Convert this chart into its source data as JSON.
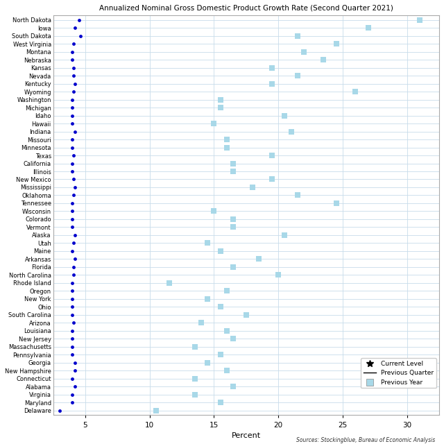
{
  "title": "Annualized Nominal Gross Domestic Product Growth Rate (Second Quarter 2021)",
  "xlabel": "Percent",
  "source": "Sources: Stockingblue, Bureau of Economic Analysis",
  "states": [
    "North Dakota",
    "Iowa",
    "South Dakota",
    "West Virginia",
    "Montana",
    "Nebraska",
    "Kansas",
    "Nevada",
    "Kentucky",
    "Wyoming",
    "Washington",
    "Michigan",
    "Idaho",
    "Hawaii",
    "Indiana",
    "Missouri",
    "Minnesota",
    "Texas",
    "California",
    "Illinois",
    "New Mexico",
    "Mississippi",
    "Oklahoma",
    "Tennessee",
    "Wisconsin",
    "Colorado",
    "Vermont",
    "Alaska",
    "Utah",
    "Maine",
    "Arkansas",
    "Florida",
    "North Carolina",
    "Rhode Island",
    "Oregon",
    "New York",
    "Ohio",
    "South Carolina",
    "Arizona",
    "Louisiana",
    "New Jersey",
    "Massachusetts",
    "Pennsylvania",
    "Georgia",
    "New Hampshire",
    "Connecticut",
    "Alabama",
    "Virginia",
    "Maryland",
    "Delaware"
  ],
  "current_level": [
    4.5,
    4.2,
    4.6,
    4.1,
    4.0,
    4.0,
    4.1,
    4.1,
    4.2,
    4.1,
    4.0,
    4.0,
    4.0,
    4.0,
    4.2,
    4.0,
    4.0,
    4.1,
    4.0,
    4.0,
    4.1,
    4.2,
    4.1,
    4.0,
    4.0,
    4.0,
    4.0,
    4.2,
    4.1,
    4.0,
    4.2,
    4.1,
    4.1,
    4.0,
    4.0,
    4.0,
    4.0,
    4.0,
    4.1,
    4.0,
    4.0,
    4.0,
    4.0,
    4.2,
    4.2,
    4.0,
    4.2,
    4.0,
    4.0,
    3.0
  ],
  "prev_year": [
    31.0,
    27.0,
    21.5,
    24.5,
    22.0,
    23.5,
    19.5,
    21.5,
    19.5,
    26.0,
    15.5,
    15.5,
    20.5,
    15.0,
    21.0,
    16.0,
    16.0,
    19.5,
    16.5,
    16.5,
    19.5,
    18.0,
    21.5,
    24.5,
    15.0,
    16.5,
    16.5,
    20.5,
    14.5,
    15.5,
    18.5,
    16.5,
    20.0,
    11.5,
    16.0,
    14.5,
    15.5,
    17.5,
    14.0,
    16.0,
    16.5,
    13.5,
    15.5,
    14.5,
    16.0,
    13.5,
    16.5,
    13.5,
    15.5,
    10.5
  ],
  "dot_color": "#0000cc",
  "square_color": "#a8d8e8",
  "bg_color": "#ffffff",
  "grid_color": "#c8dcea",
  "label_color": "#000000",
  "xlim": [
    2.5,
    32.5
  ],
  "xticks": [
    5,
    10,
    15,
    20,
    25,
    30
  ]
}
